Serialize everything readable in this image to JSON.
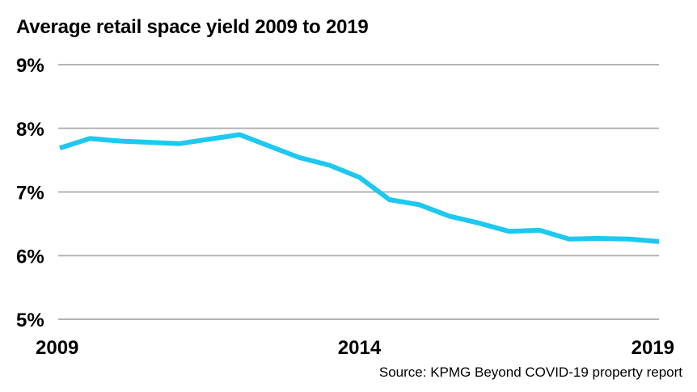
{
  "chart_data": {
    "type": "line",
    "title": "Average retail space yield 2009 to 2019",
    "source": "Source: KPMG Beyond COVID-19 property report",
    "xlabel": "",
    "ylabel": "",
    "ylim": [
      5,
      9
    ],
    "yticks": [
      "5%",
      "6%",
      "7%",
      "8%",
      "9%"
    ],
    "ytick_values": [
      5,
      6,
      7,
      8,
      9
    ],
    "xlim": [
      2009,
      2019
    ],
    "xticks": [
      "2009",
      "2014",
      "2019"
    ],
    "xtick_values": [
      2009,
      2014,
      2019
    ],
    "grid": true,
    "legend": "none",
    "line_color": "#1ec8f0",
    "series": [
      {
        "x": [
          2009,
          2009.5,
          2010,
          2010.5,
          2011,
          2011.5,
          2012,
          2012.5,
          2013,
          2013.5,
          2014,
          2014.5,
          2015,
          2015.5,
          2016,
          2016.5,
          2017,
          2017.5,
          2018,
          2018.5,
          2019
        ],
        "values": [
          7.69,
          7.84,
          7.8,
          7.78,
          7.76,
          7.83,
          7.9,
          7.72,
          7.54,
          7.42,
          7.23,
          6.88,
          6.8,
          6.62,
          6.51,
          6.38,
          6.4,
          6.26,
          6.27,
          6.26,
          6.22
        ]
      }
    ]
  }
}
